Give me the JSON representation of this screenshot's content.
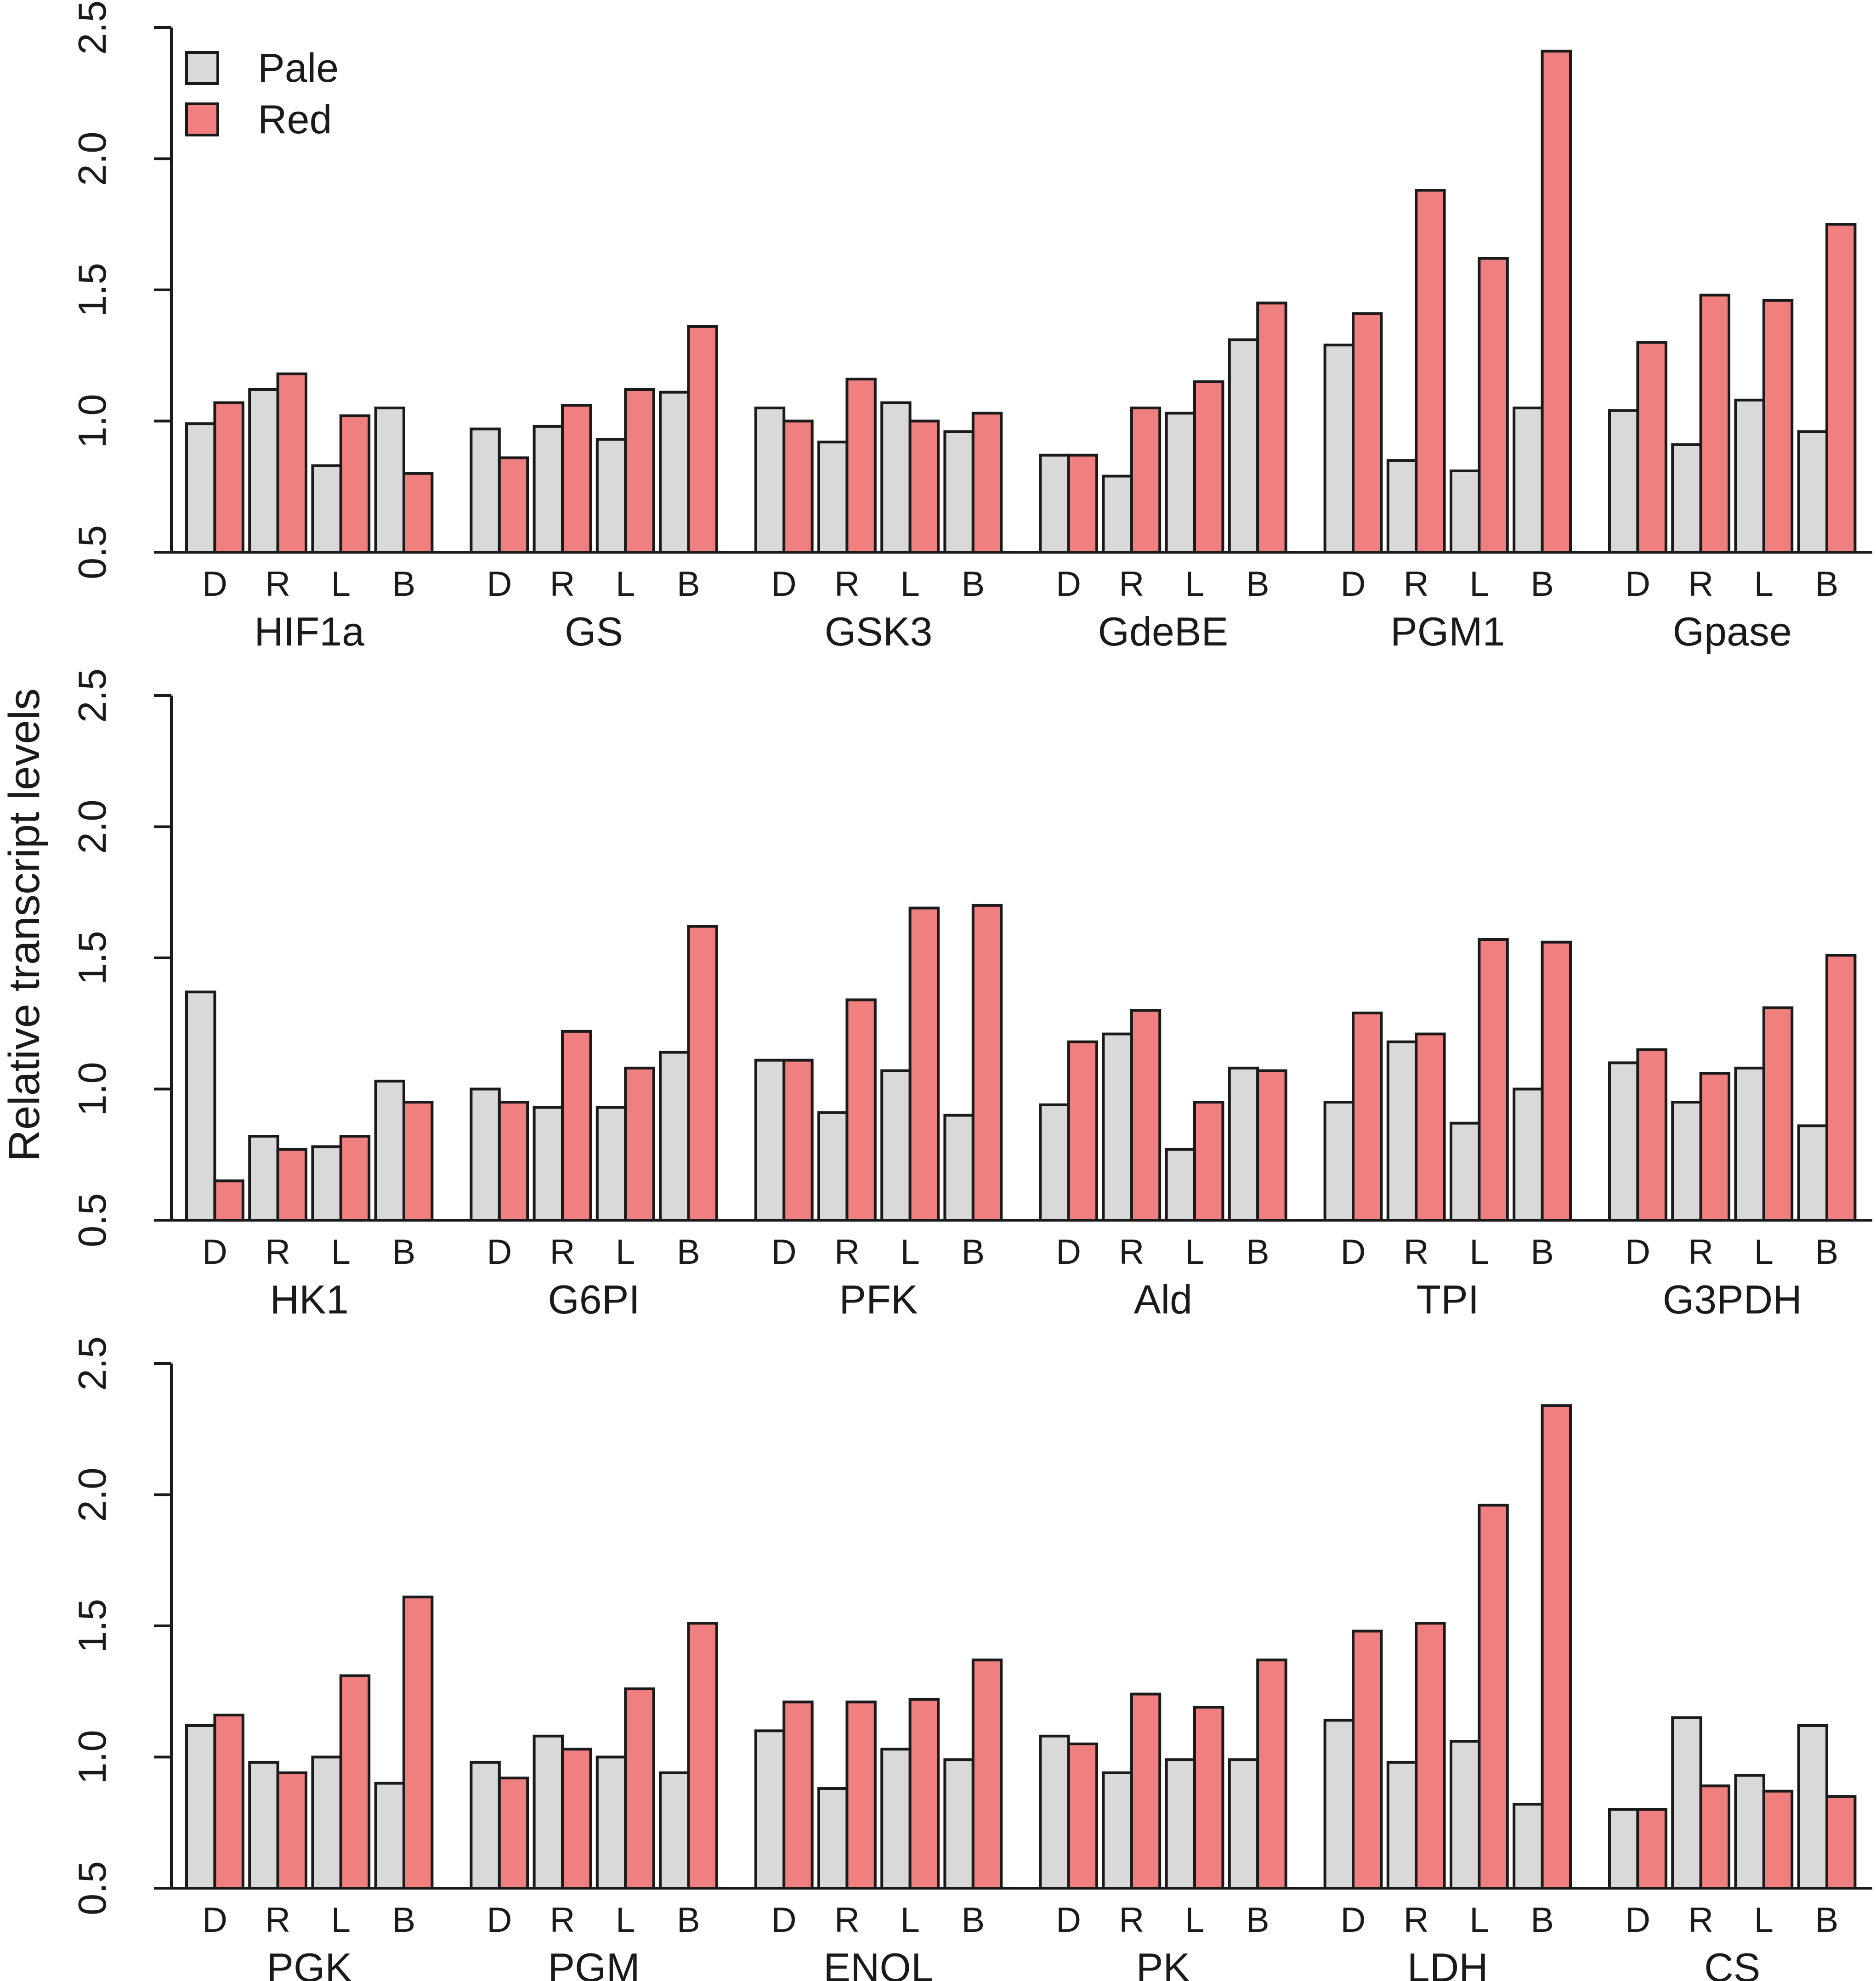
{
  "chart_data": {
    "type": "bar",
    "ylabel": "Relative transcript levels",
    "ylim": [
      0.5,
      2.5
    ],
    "yticks": [
      "0.5",
      "1.0",
      "1.5",
      "2.0",
      "2.5"
    ],
    "tissues": [
      "D",
      "R",
      "L",
      "B"
    ],
    "legend": {
      "position": "top-left",
      "entries": [
        {
          "name": "Pale",
          "color": "#d9d9d9"
        },
        {
          "name": "Red",
          "color": "#f08080"
        }
      ]
    },
    "panels": [
      {
        "genes": [
          {
            "name": "HIF1a",
            "pale": [
              0.99,
              1.12,
              0.83,
              1.05
            ],
            "red": [
              1.07,
              1.18,
              1.02,
              0.8
            ]
          },
          {
            "name": "GS",
            "pale": [
              0.97,
              0.98,
              0.93,
              1.11
            ],
            "red": [
              0.86,
              1.06,
              1.12,
              1.36
            ]
          },
          {
            "name": "GSK3",
            "pale": [
              1.05,
              0.92,
              1.07,
              0.96
            ],
            "red": [
              1.0,
              1.16,
              1.0,
              1.03
            ]
          },
          {
            "name": "GdeBE",
            "pale": [
              0.87,
              0.79,
              1.03,
              1.31
            ],
            "red": [
              0.87,
              1.05,
              1.15,
              1.45
            ]
          },
          {
            "name": "PGM1",
            "pale": [
              1.29,
              0.85,
              0.81,
              1.05
            ],
            "red": [
              1.41,
              1.88,
              1.62,
              2.41
            ]
          },
          {
            "name": "Gpase",
            "pale": [
              1.04,
              0.91,
              1.08,
              0.96
            ],
            "red": [
              1.3,
              1.48,
              1.46,
              1.75
            ]
          }
        ]
      },
      {
        "genes": [
          {
            "name": "HK1",
            "pale": [
              1.37,
              0.82,
              0.78,
              1.03
            ],
            "red": [
              0.65,
              0.77,
              0.82,
              0.95
            ]
          },
          {
            "name": "G6PI",
            "pale": [
              1.0,
              0.93,
              0.93,
              1.14
            ],
            "red": [
              0.95,
              1.22,
              1.08,
              1.62
            ]
          },
          {
            "name": "PFK",
            "pale": [
              1.11,
              0.91,
              1.07,
              0.9
            ],
            "red": [
              1.11,
              1.34,
              1.69,
              1.7
            ]
          },
          {
            "name": "Ald",
            "pale": [
              0.94,
              1.21,
              0.77,
              1.08
            ],
            "red": [
              1.18,
              1.3,
              0.95,
              1.07
            ]
          },
          {
            "name": "TPI",
            "pale": [
              0.95,
              1.18,
              0.87,
              1.0
            ],
            "red": [
              1.29,
              1.21,
              1.57,
              1.56
            ]
          },
          {
            "name": "G3PDH",
            "pale": [
              1.1,
              0.95,
              1.08,
              0.86
            ],
            "red": [
              1.15,
              1.06,
              1.31,
              1.51
            ]
          }
        ]
      },
      {
        "genes": [
          {
            "name": "PGK",
            "pale": [
              1.12,
              0.98,
              1.0,
              0.9
            ],
            "red": [
              1.16,
              0.94,
              1.31,
              1.61
            ]
          },
          {
            "name": "PGM",
            "pale": [
              0.98,
              1.08,
              1.0,
              0.94
            ],
            "red": [
              0.92,
              1.03,
              1.26,
              1.51
            ]
          },
          {
            "name": "ENOL",
            "pale": [
              1.1,
              0.88,
              1.03,
              0.99
            ],
            "red": [
              1.21,
              1.21,
              1.22,
              1.37
            ]
          },
          {
            "name": "PK",
            "pale": [
              1.08,
              0.94,
              0.99,
              0.99
            ],
            "red": [
              1.05,
              1.24,
              1.19,
              1.37
            ]
          },
          {
            "name": "LDH",
            "pale": [
              1.14,
              0.98,
              1.06,
              0.82
            ],
            "red": [
              1.48,
              1.51,
              1.96,
              2.34
            ]
          },
          {
            "name": "CS",
            "pale": [
              0.8,
              1.15,
              0.93,
              1.12
            ],
            "red": [
              0.8,
              0.89,
              0.87,
              0.85
            ]
          }
        ]
      }
    ]
  }
}
